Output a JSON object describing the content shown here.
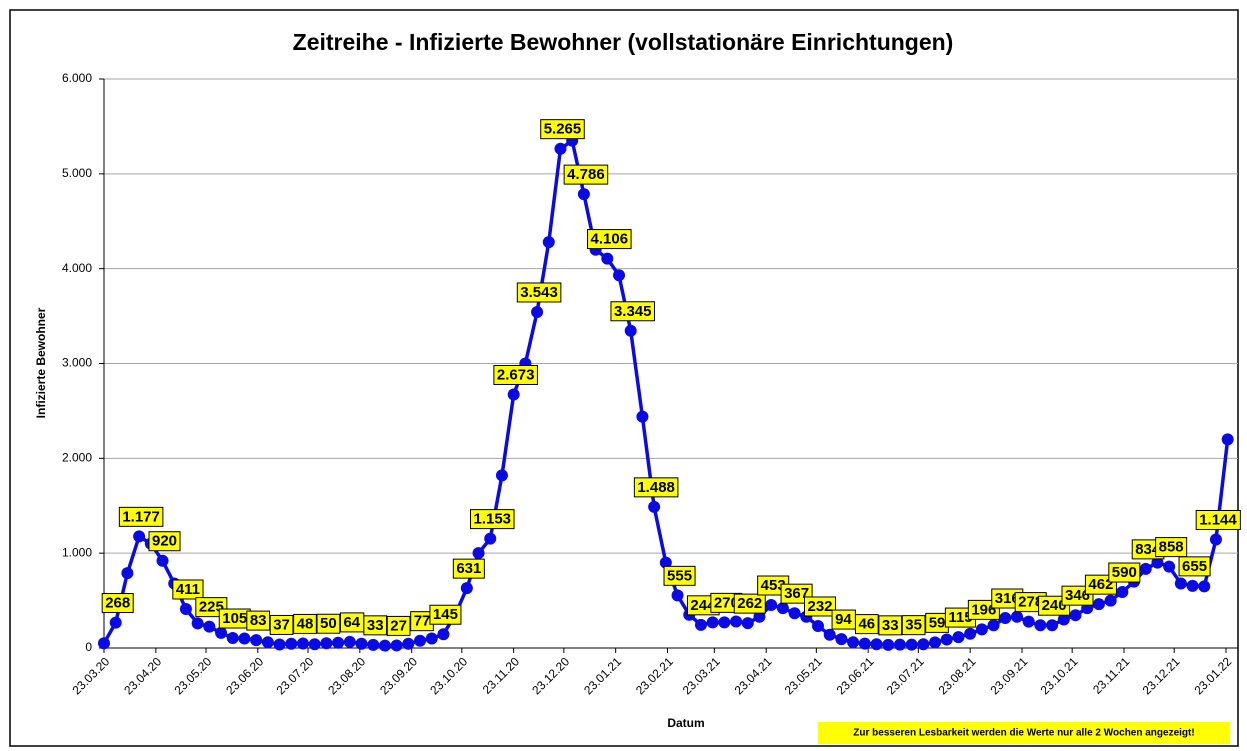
{
  "chart_data": {
    "type": "line",
    "title": "Zeitreihe - Infizierte Bewohner (vollstationäre Einrichtungen)",
    "x_label": "Datum",
    "y_label": "Infizierte Bewohner",
    "note": "Zur besseren Lesbarkeit werden die Werte nur alle 2 Wochen angezeigt!",
    "x": [
      "2020-03-23",
      "2020-03-30",
      "2020-04-06",
      "2020-04-13",
      "2020-04-20",
      "2020-04-27",
      "2020-05-04",
      "2020-05-11",
      "2020-05-18",
      "2020-05-25",
      "2020-06-01",
      "2020-06-08",
      "2020-06-15",
      "2020-06-22",
      "2020-06-29",
      "2020-07-06",
      "2020-07-13",
      "2020-07-20",
      "2020-07-27",
      "2020-08-03",
      "2020-08-10",
      "2020-08-17",
      "2020-08-24",
      "2020-08-31",
      "2020-09-07",
      "2020-09-14",
      "2020-09-21",
      "2020-09-28",
      "2020-10-05",
      "2020-10-12",
      "2020-10-19",
      "2020-10-26",
      "2020-11-02",
      "2020-11-09",
      "2020-11-16",
      "2020-11-23",
      "2020-11-30",
      "2020-12-07",
      "2020-12-14",
      "2020-12-21",
      "2020-12-28",
      "2021-01-04",
      "2021-01-11",
      "2021-01-18",
      "2021-01-25",
      "2021-02-01",
      "2021-02-08",
      "2021-02-15",
      "2021-02-22",
      "2021-03-01",
      "2021-03-08",
      "2021-03-15",
      "2021-03-22",
      "2021-03-29",
      "2021-04-05",
      "2021-04-12",
      "2021-04-19",
      "2021-04-26",
      "2021-05-03",
      "2021-05-10",
      "2021-05-17",
      "2021-05-24",
      "2021-05-31",
      "2021-06-07",
      "2021-06-14",
      "2021-06-21",
      "2021-06-28",
      "2021-07-05",
      "2021-07-12",
      "2021-07-19",
      "2021-07-26",
      "2021-08-02",
      "2021-08-09",
      "2021-08-16",
      "2021-08-23",
      "2021-08-30",
      "2021-09-06",
      "2021-09-13",
      "2021-09-20",
      "2021-09-27",
      "2021-10-04",
      "2021-10-11",
      "2021-10-18",
      "2021-10-25",
      "2021-11-01",
      "2021-11-08",
      "2021-11-15",
      "2021-11-22",
      "2021-11-29",
      "2021-12-06",
      "2021-12-13",
      "2021-12-20",
      "2021-12-27",
      "2022-01-03",
      "2022-01-10",
      "2022-01-17",
      "2022-01-24"
    ],
    "series": [
      {
        "name": "Infizierte Bewohner",
        "color": "#0a0ae6",
        "values": [
          50,
          268,
          790,
          1177,
          1100,
          920,
          680,
          411,
          260,
          225,
          160,
          105,
          100,
          83,
          60,
          37,
          45,
          48,
          40,
          50,
          55,
          64,
          45,
          33,
          25,
          27,
          45,
          77,
          100,
          145,
          350,
          631,
          1000,
          1153,
          1820,
          2673,
          3000,
          3543,
          4280,
          5265,
          5350,
          4786,
          4200,
          4106,
          3930,
          3345,
          2440,
          1488,
          900,
          555,
          350,
          244,
          270,
          270,
          280,
          262,
          330,
          453,
          420,
          367,
          330,
          232,
          140,
          94,
          60,
          46,
          40,
          33,
          35,
          35,
          40,
          59,
          90,
          115,
          150,
          196,
          240,
          316,
          330,
          278,
          240,
          240,
          300,
          346,
          420,
          462,
          500,
          590,
          700,
          834,
          900,
          858,
          680,
          655,
          650,
          1144,
          2200
        ],
        "value_labels": [
          null,
          "268",
          null,
          "1.177",
          null,
          "920",
          null,
          "411",
          null,
          "225",
          null,
          "105",
          null,
          "83",
          null,
          "37",
          null,
          "48",
          null,
          "50",
          null,
          "64",
          null,
          "33",
          null,
          "27",
          null,
          "77",
          null,
          "145",
          null,
          "631",
          null,
          "1.153",
          null,
          "2.673",
          null,
          "3.543",
          null,
          "5.265",
          null,
          "4.786",
          null,
          "4.106",
          null,
          "3.345",
          null,
          "1.488",
          null,
          "555",
          null,
          "244",
          null,
          "270",
          null,
          "262",
          null,
          "453",
          null,
          "367",
          null,
          "232",
          null,
          "94",
          null,
          "46",
          null,
          "33",
          null,
          "35",
          null,
          "59",
          null,
          "115",
          null,
          "196",
          null,
          "316",
          null,
          "278",
          null,
          "240",
          null,
          "346",
          null,
          "462",
          null,
          "590",
          null,
          "834",
          null,
          "858",
          null,
          "655",
          null,
          "1.144",
          null
        ]
      }
    ],
    "xlim": [
      "2020-03-23",
      "2022-01-23"
    ],
    "xticks": [
      {
        "value": "2020-03-23",
        "label": "23.03.20"
      },
      {
        "value": "2020-04-23",
        "label": "23.04.20"
      },
      {
        "value": "2020-05-23",
        "label": "23.05.20"
      },
      {
        "value": "2020-06-23",
        "label": "23.06.20"
      },
      {
        "value": "2020-07-23",
        "label": "23.07.20"
      },
      {
        "value": "2020-08-23",
        "label": "23.08.20"
      },
      {
        "value": "2020-09-23",
        "label": "23.09.20"
      },
      {
        "value": "2020-10-23",
        "label": "23.10.20"
      },
      {
        "value": "2020-11-23",
        "label": "23.11.20"
      },
      {
        "value": "2020-12-23",
        "label": "23.12.20"
      },
      {
        "value": "2021-01-23",
        "label": "23.01.21"
      },
      {
        "value": "2021-02-23",
        "label": "23.02.21"
      },
      {
        "value": "2021-03-23",
        "label": "23.03.21"
      },
      {
        "value": "2021-04-23",
        "label": "23.04.21"
      },
      {
        "value": "2021-05-23",
        "label": "23.05.21"
      },
      {
        "value": "2021-06-23",
        "label": "23.06.21"
      },
      {
        "value": "2021-07-23",
        "label": "23.07.21"
      },
      {
        "value": "2021-08-23",
        "label": "23.08.21"
      },
      {
        "value": "2021-09-23",
        "label": "23.09.21"
      },
      {
        "value": "2021-10-23",
        "label": "23.10.21"
      },
      {
        "value": "2021-11-23",
        "label": "23.11.21"
      },
      {
        "value": "2021-12-23",
        "label": "23.12.21"
      },
      {
        "value": "2022-01-23",
        "label": "23.01.22"
      }
    ],
    "ylim": [
      0,
      6000
    ],
    "yticks": [
      0,
      {
        "value": 1000,
        "label": "1.000"
      },
      {
        "value": 2000,
        "label": "2.000"
      },
      {
        "value": 3000,
        "label": "3.000"
      },
      {
        "value": 4000,
        "label": "4.000"
      },
      {
        "value": 5000,
        "label": "5.000"
      },
      {
        "value": 6000,
        "label": "6.000"
      }
    ],
    "grid": true
  }
}
